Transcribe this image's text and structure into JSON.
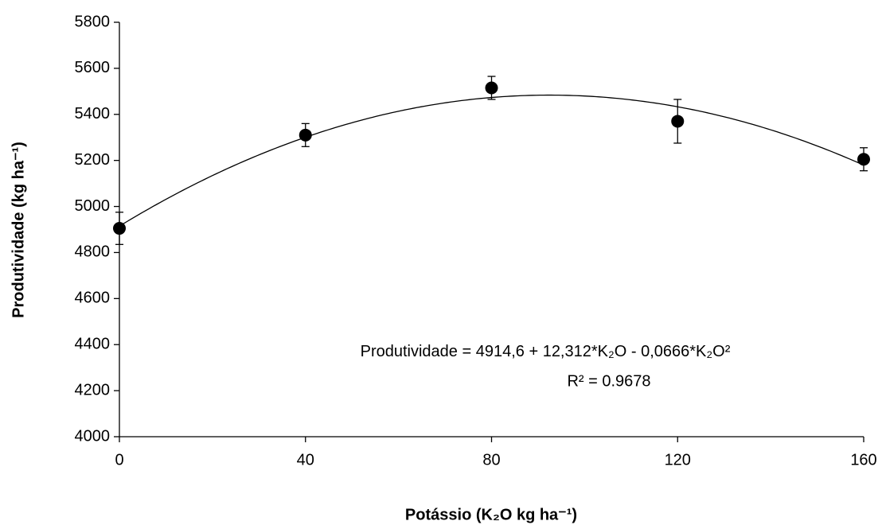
{
  "chart_data": {
    "type": "scatter",
    "x_label": "Potássio (K₂O kg ha⁻¹)",
    "y_label": "Produtividade (kg ha⁻¹)",
    "x": [
      0,
      40,
      80,
      120,
      160
    ],
    "values": [
      4905,
      5310,
      5515,
      5370,
      5205
    ],
    "errors": [
      70,
      50,
      50,
      95,
      50
    ],
    "color": "#000000",
    "xlim": [
      0,
      160
    ],
    "xticks": [
      0,
      40,
      80,
      120,
      160
    ],
    "ylim": [
      4000,
      5800
    ],
    "yticks": [
      4000,
      4200,
      4400,
      4600,
      4800,
      5000,
      5200,
      5400,
      5600,
      5800
    ],
    "trendline": {
      "lhs": "Produtividade =",
      "terms": [
        {
          "value": 4914.6,
          "label": "4914,6"
        },
        {
          "value": 12.312,
          "label": "+ 12,312*K₂O"
        },
        {
          "value": -0.0666,
          "label": "- 0,0666*K₂O²"
        }
      ],
      "r2": "R² = 0.9678"
    }
  }
}
